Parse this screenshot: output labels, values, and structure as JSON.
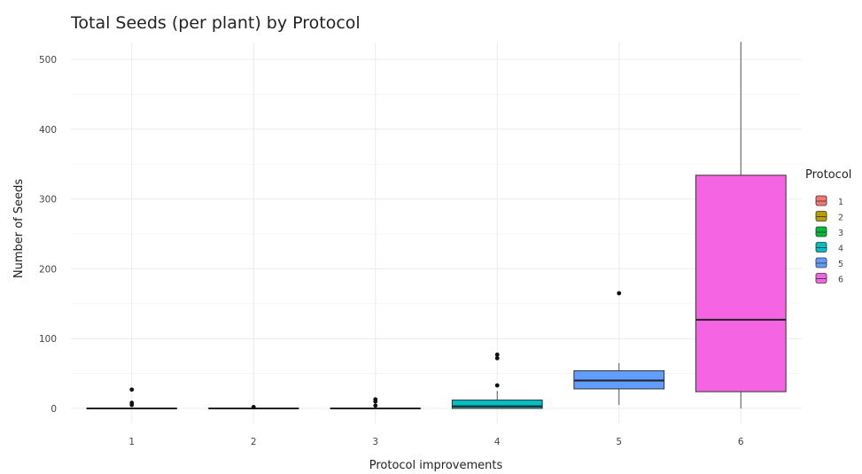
{
  "chart_data": {
    "type": "boxplot",
    "title": "Total Seeds (per plant) by Protocol",
    "xlabel": "Protocol improvements",
    "ylabel": "Number of Seeds",
    "ylim": [
      -10,
      525
    ],
    "y_ticks": [
      0,
      100,
      200,
      300,
      400,
      500
    ],
    "categories": [
      "1",
      "2",
      "3",
      "4",
      "5",
      "6"
    ],
    "grid": true,
    "legend": {
      "title": "Protocol",
      "position": "right",
      "entries": [
        "1",
        "2",
        "3",
        "4",
        "5",
        "6"
      ]
    },
    "series": [
      {
        "category": "1",
        "color": "#F8766D",
        "min": 0,
        "q1": 0,
        "median": 0,
        "q3": 0,
        "max": 0,
        "outliers": [
          27,
          8,
          5
        ]
      },
      {
        "category": "2",
        "color": "#B79F00",
        "min": 0,
        "q1": 0,
        "median": 0,
        "q3": 0,
        "max": 0,
        "outliers": [
          2
        ]
      },
      {
        "category": "3",
        "color": "#00BA38",
        "min": 0,
        "q1": 0,
        "median": 0,
        "q3": 0,
        "max": 0,
        "outliers": [
          13,
          10,
          4
        ]
      },
      {
        "category": "4",
        "color": "#00BFC4",
        "min": 0,
        "q1": 0,
        "median": 3,
        "q3": 12,
        "max": 25,
        "outliers": [
          77,
          72,
          33
        ]
      },
      {
        "category": "5",
        "color": "#619CFF",
        "min": 5,
        "q1": 28,
        "median": 40,
        "q3": 54,
        "max": 65,
        "outliers": [
          165
        ]
      },
      {
        "category": "6",
        "color": "#F564E3",
        "min": 0,
        "q1": 24,
        "median": 127,
        "q3": 334,
        "max": 525,
        "outliers": []
      }
    ]
  }
}
